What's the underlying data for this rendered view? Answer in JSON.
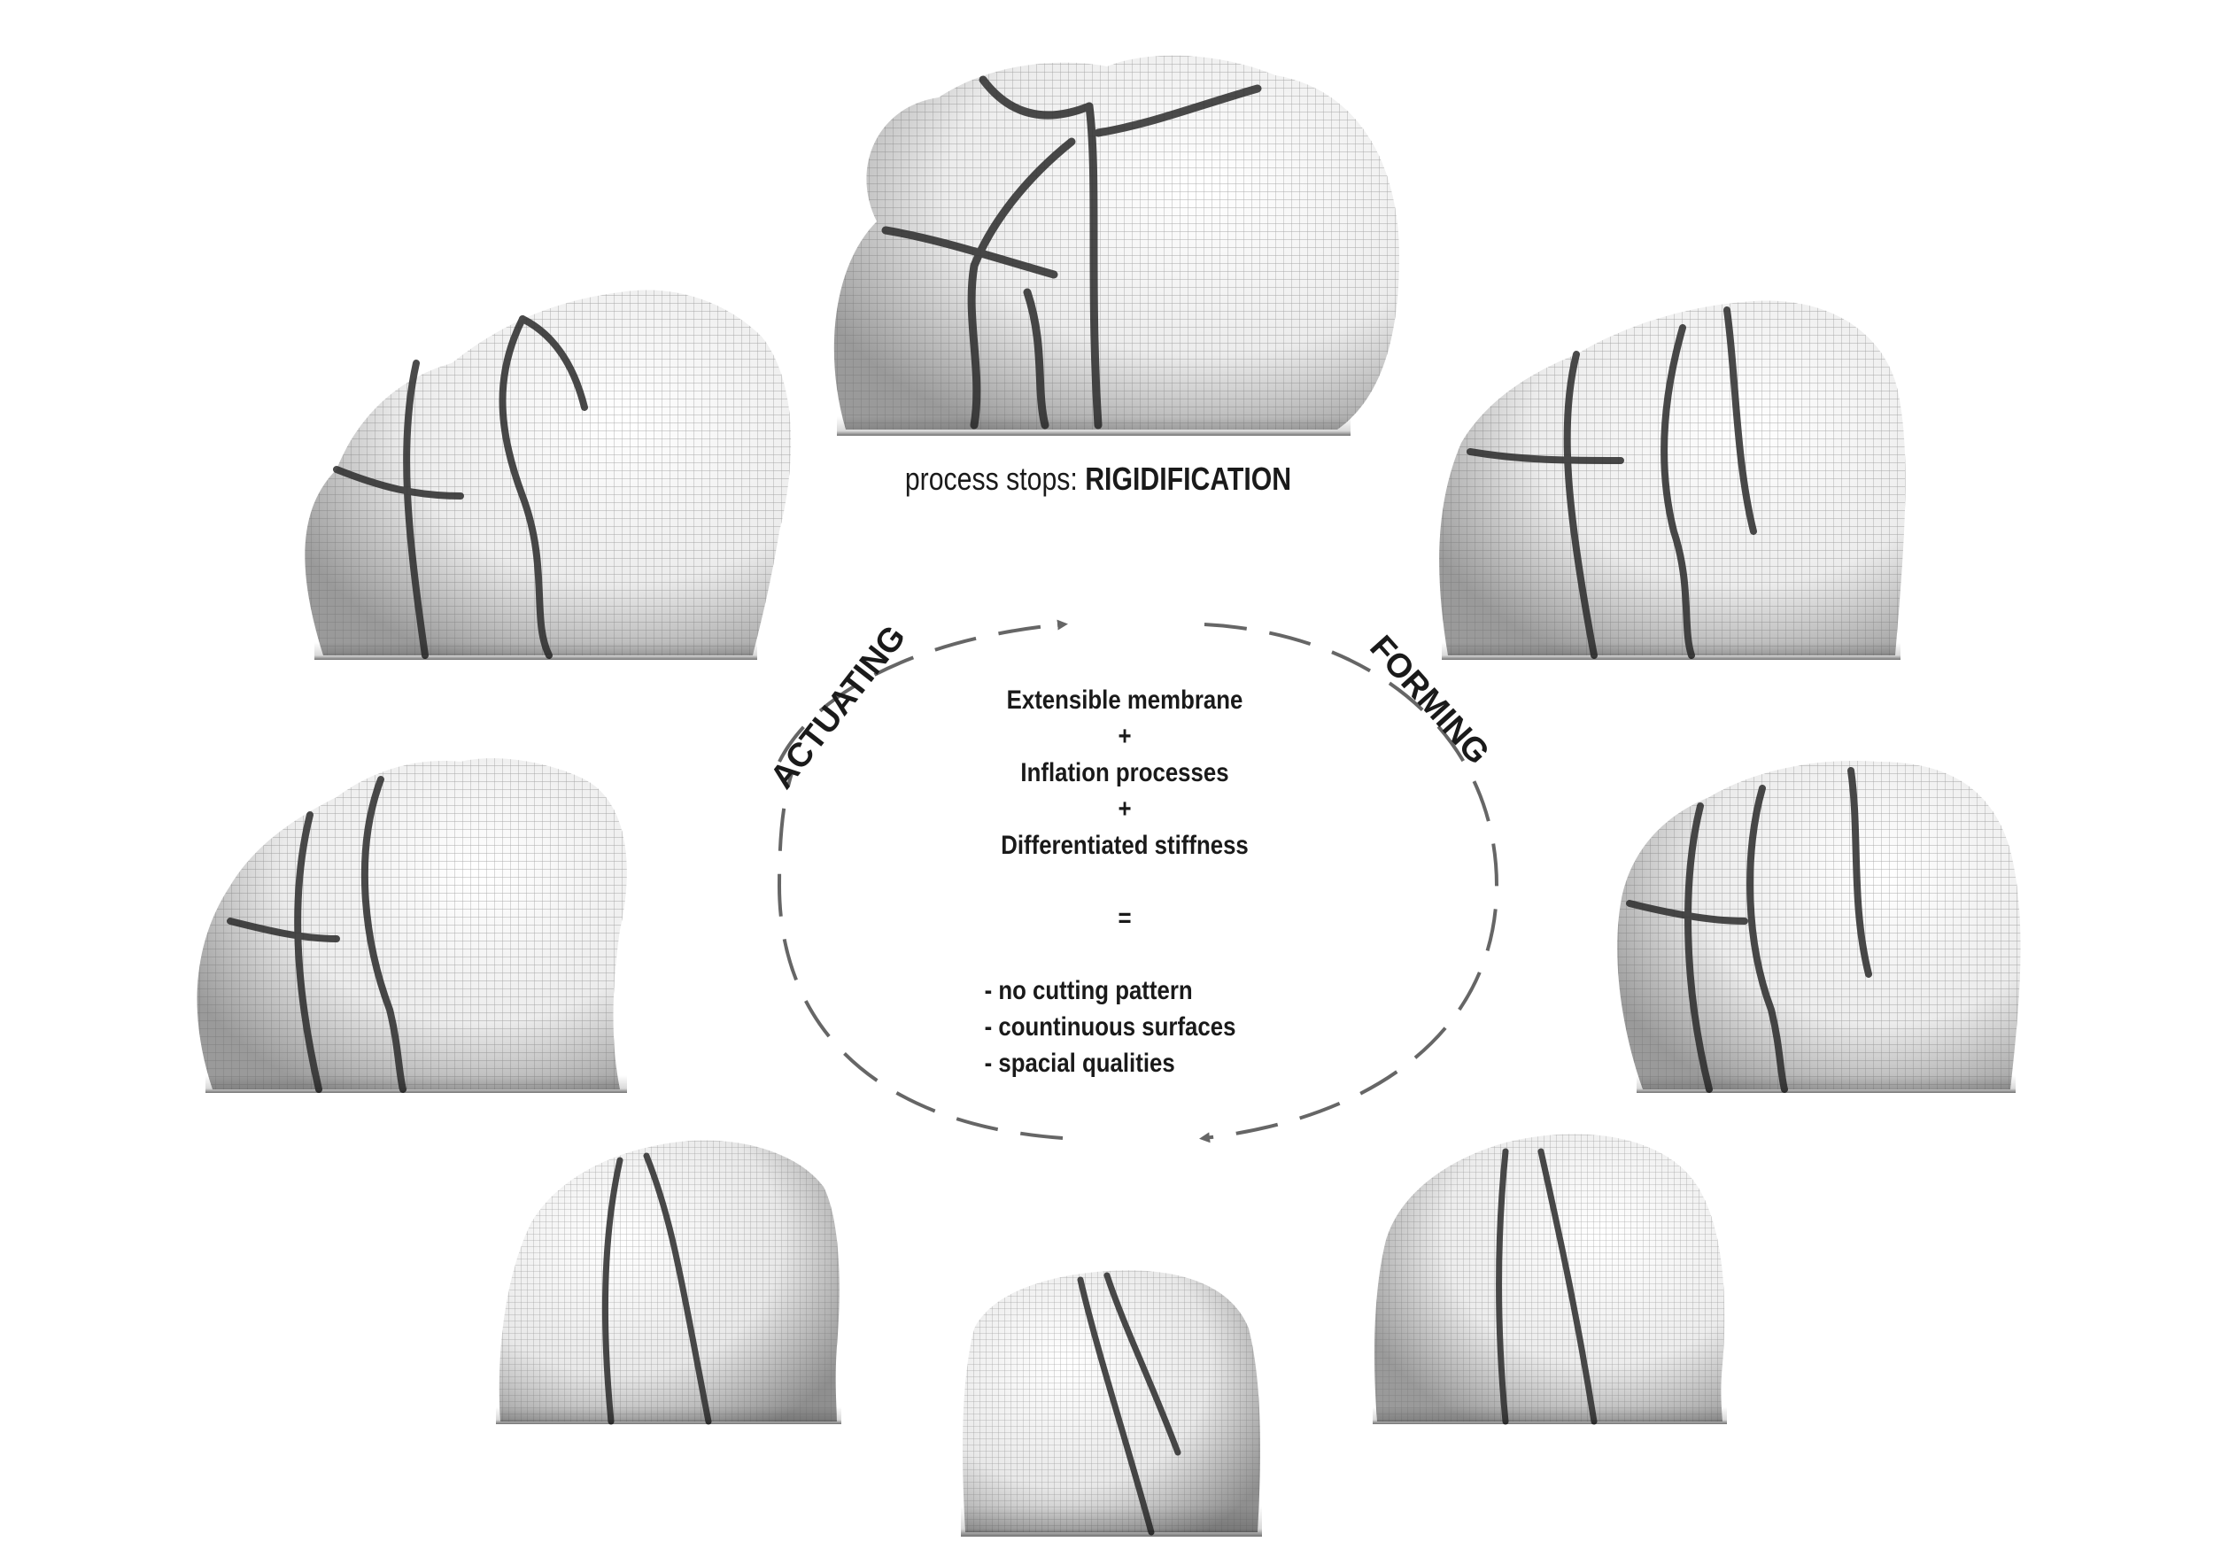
{
  "diagram": {
    "caption_prefix": "process stops: ",
    "caption_bold": "RIGIDIFICATION",
    "label_left": "ACTUATING",
    "label_right": "FORMING",
    "center": {
      "line1": "Extensible membrane",
      "plus1": "+",
      "line2": "Inflation processes",
      "plus2": "+",
      "line3": "Differentiated stiffness",
      "equals": "=",
      "bullet1": "- no cutting pattern",
      "bullet2": "- countinuous surfaces",
      "bullet3": "- spacial qualities"
    },
    "colors": {
      "text": "#1a1a1a",
      "arrow": "#666666",
      "surface_light": "#f2f2f2",
      "surface_dark": "#3a3a3a",
      "mesh": "#555555"
    }
  }
}
